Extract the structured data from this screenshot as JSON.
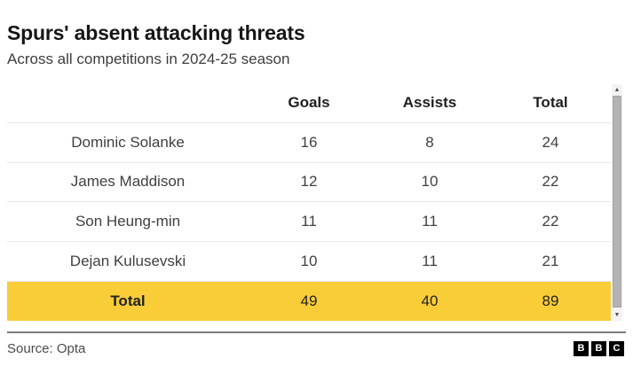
{
  "header": {
    "title": "Spurs' absent attacking threats",
    "subtitle": "Across all competitions in 2024-25 season"
  },
  "chart_data": {
    "type": "table",
    "title": "Spurs' absent attacking threats",
    "subtitle": "Across all competitions in 2024-25 season",
    "columns": [
      "",
      "Goals",
      "Assists",
      "Total"
    ],
    "rows": [
      [
        "Dominic Solanke",
        16,
        8,
        24
      ],
      [
        "James Maddison",
        12,
        10,
        22
      ],
      [
        "Son Heung-min",
        11,
        11,
        22
      ],
      [
        "Dejan Kulusevski",
        10,
        11,
        21
      ]
    ],
    "total_row": [
      "Total",
      49,
      40,
      89
    ],
    "layout_hints": {
      "total_row_highlight": "#F9CD37",
      "grid": "horizontal-separators-only",
      "numeric_columns_centered": true
    }
  },
  "scrollbar": {
    "up_icon": "▲",
    "down_icon": "▼"
  },
  "footer": {
    "source": "Source: Opta",
    "logo_letters": [
      "B",
      "B",
      "C"
    ]
  },
  "colors": {
    "accent_yellow": "#F9CD37",
    "title_text": "#161616",
    "body_text": "#404040",
    "separator": "#e7e7e7",
    "footer_divider": "#7d7d7d",
    "logo_bg": "#000000"
  }
}
